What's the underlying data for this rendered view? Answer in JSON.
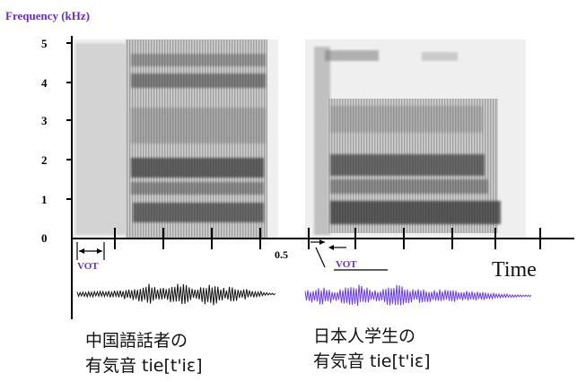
{
  "figure": {
    "y_axis_title": "Frequency (kHz)",
    "y_ticks": [
      "0",
      "1",
      "2",
      "3",
      "4",
      "5"
    ],
    "x_axis_title": "Time",
    "scale_label": "0.5",
    "vot_label_left": "VOT",
    "vot_label_right": "VOT",
    "caption_left_line1": "中国語話者の",
    "caption_left_line2": "有気音 tie[t'iɛ]",
    "caption_right_line1": "日本人学生の",
    "caption_right_line2": "有気音 tie[t'iɛ]",
    "colors": {
      "axis": "#000000",
      "title": "#6a2bd6",
      "vot_left": "#6a2bd6",
      "vot_right": "#6a2bd6",
      "waveform_left": "#111111",
      "waveform_right": "#6b3cf0",
      "spectrogram_bg": "#efefef",
      "spectrogram_dark": "#555555"
    }
  }
}
